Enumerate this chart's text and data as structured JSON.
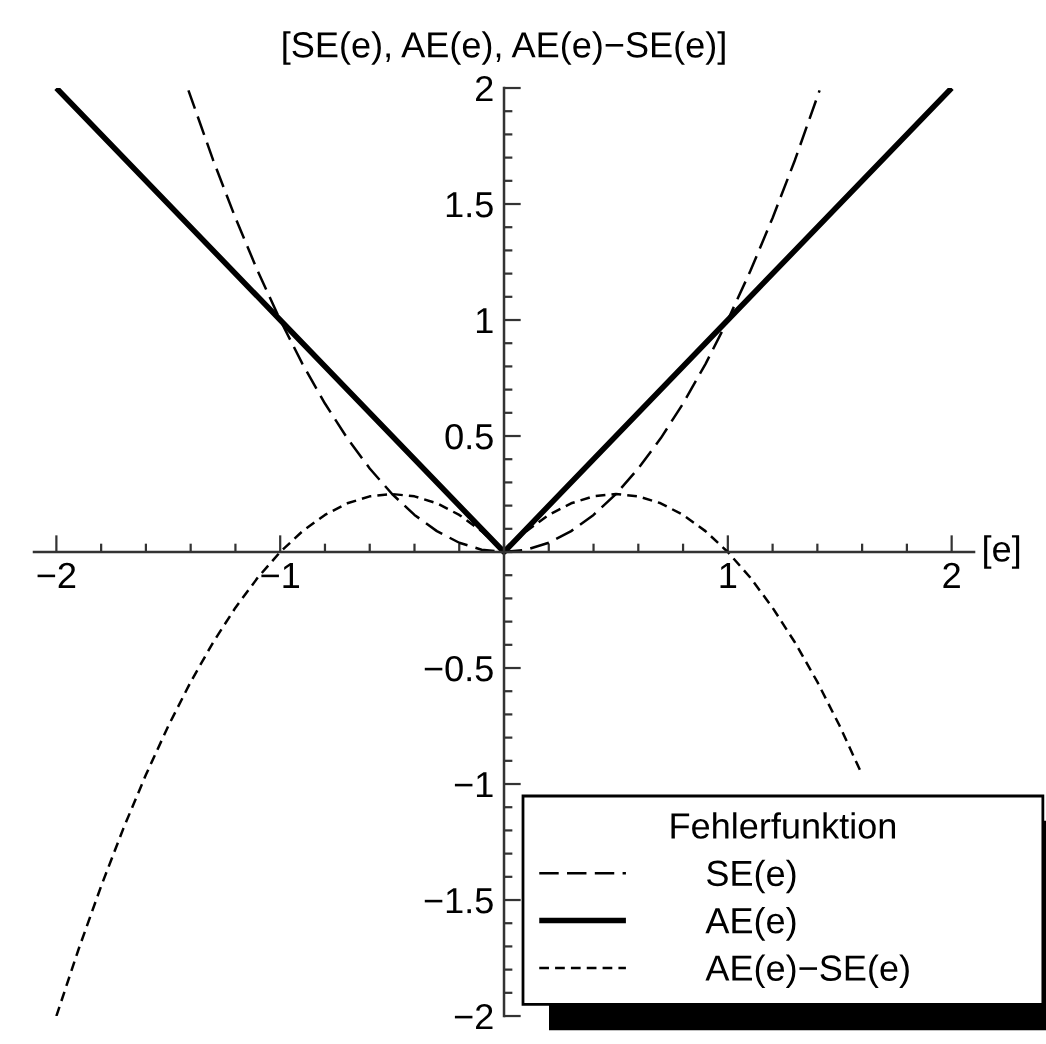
{
  "chart_data": {
    "type": "line",
    "ylabel": "[SE(e), AE(e), AE(e)−SE(e)]",
    "xlabel": "[e]",
    "legend_title": "Fehlerfunktion",
    "legend": "bottom right",
    "xlim": [
      -2.1,
      2.1
    ],
    "ylim": [
      -2,
      2
    ],
    "xticks": [
      {
        "value": -2,
        "label": "−2"
      },
      {
        "value": -1,
        "label": "−1"
      },
      1,
      2
    ],
    "yticks": [
      {
        "value": -2,
        "label": "−2"
      },
      {
        "value": -1.5,
        "label": "−1.5"
      },
      {
        "value": -1,
        "label": "−1"
      },
      {
        "value": -0.5,
        "label": "−0.5"
      },
      0.5,
      1,
      1.5,
      2
    ],
    "series": [
      {
        "name": "SE(e)",
        "color": "#000000",
        "line_style": "dashed",
        "x": [
          -1.41,
          -1.3,
          -1.2,
          -1.1,
          -1,
          -0.9,
          -0.8,
          -0.7,
          -0.6,
          -0.5,
          -0.4,
          -0.3,
          -0.2,
          -0.1,
          0,
          0.1,
          0.2,
          0.3,
          0.4,
          0.5,
          0.6,
          0.7,
          0.8,
          0.9,
          1,
          1.1,
          1.2,
          1.3,
          1.41
        ],
        "values": [
          1.99,
          1.69,
          1.44,
          1.21,
          1,
          0.81,
          0.64,
          0.49,
          0.36,
          0.25,
          0.16,
          0.09,
          0.04,
          0.01,
          0,
          0.01,
          0.04,
          0.09,
          0.16,
          0.25,
          0.36,
          0.49,
          0.64,
          0.81,
          1,
          1.21,
          1.44,
          1.69,
          1.99
        ]
      },
      {
        "name": "AE(e)",
        "color": "#000000",
        "line_style": "solid",
        "x": [
          -2,
          -1,
          0,
          1,
          2
        ],
        "values": [
          2,
          1,
          0,
          1,
          2
        ]
      },
      {
        "name": "AE(e)−SE(e)",
        "color": "#000000",
        "line_style": "dotted",
        "x": [
          -2,
          -1.9,
          -1.8,
          -1.7,
          -1.6,
          -1.5,
          -1.4,
          -1.3,
          -1.2,
          -1.1,
          -1,
          -0.9,
          -0.8,
          -0.7,
          -0.6,
          -0.5,
          -0.4,
          -0.3,
          -0.2,
          -0.1,
          0,
          0.1,
          0.2,
          0.3,
          0.4,
          0.5,
          0.6,
          0.7,
          0.8,
          0.9,
          1,
          1.1,
          1.2,
          1.3,
          1.4,
          1.5,
          1.6
        ],
        "values": [
          -2,
          -1.71,
          -1.44,
          -1.19,
          -0.96,
          -0.75,
          -0.56,
          -0.39,
          -0.24,
          -0.11,
          0,
          0.09,
          0.16,
          0.21,
          0.24,
          0.25,
          0.24,
          0.21,
          0.16,
          0.09,
          0,
          0.09,
          0.16,
          0.21,
          0.24,
          0.25,
          0.24,
          0.21,
          0.16,
          0.09,
          0,
          -0.11,
          -0.24,
          -0.39,
          -0.56,
          -0.75,
          -0.96
        ]
      }
    ]
  }
}
